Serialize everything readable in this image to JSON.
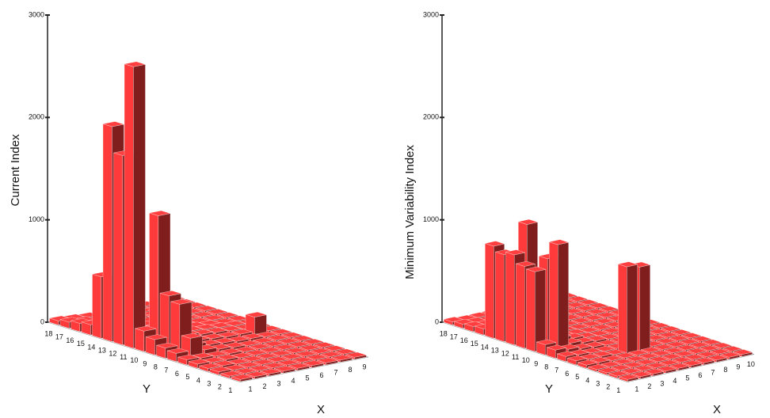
{
  "chart_data": [
    {
      "type": "bar3d",
      "zlabel": "Current Index",
      "ylabel": "Y",
      "xlabel": "X",
      "zlim": [
        0,
        3000
      ],
      "zticks": [
        0,
        1000,
        2000,
        3000
      ],
      "color": "#ff3a3a",
      "y_categories": [
        1,
        2,
        3,
        4,
        5,
        6,
        7,
        8,
        9,
        10,
        11,
        12,
        13,
        14,
        15,
        16,
        17,
        18
      ],
      "x_categories": [
        1,
        2,
        3,
        4,
        5,
        6,
        7,
        8,
        9
      ],
      "values": [
        [
          20,
          20,
          20,
          20,
          20,
          20,
          20,
          20,
          20
        ],
        [
          20,
          20,
          20,
          20,
          20,
          20,
          20,
          20,
          20
        ],
        [
          30,
          20,
          20,
          20,
          20,
          20,
          20,
          20,
          20
        ],
        [
          30,
          30,
          20,
          20,
          20,
          20,
          20,
          20,
          20
        ],
        [
          40,
          30,
          30,
          20,
          20,
          20,
          20,
          20,
          20
        ],
        [
          50,
          40,
          30,
          30,
          20,
          20,
          20,
          20,
          20
        ],
        [
          80,
          200,
          60,
          40,
          30,
          20,
          20,
          20,
          20
        ],
        [
          100,
          500,
          80,
          50,
          40,
          30,
          30,
          20,
          20
        ],
        [
          150,
          550,
          100,
          60,
          50,
          40,
          40,
          180,
          20
        ],
        [
          200,
          1300,
          120,
          80,
          60,
          50,
          40,
          30,
          20
        ],
        [
          2750,
          150,
          100,
          80,
          60,
          50,
          40,
          30,
          20
        ],
        [
          1850,
          100,
          80,
          60,
          50,
          40,
          30,
          20,
          20
        ],
        [
          2100,
          150,
          60,
          50,
          40,
          30,
          20,
          20,
          20
        ],
        [
          600,
          80,
          50,
          40,
          30,
          20,
          20,
          20,
          20
        ],
        [
          100,
          60,
          40,
          30,
          20,
          20,
          20,
          20,
          20
        ],
        [
          80,
          50,
          30,
          20,
          20,
          20,
          20,
          20,
          20
        ],
        [
          60,
          40,
          20,
          20,
          20,
          20,
          20,
          20,
          20
        ],
        [
          40,
          30,
          20,
          20,
          20,
          20,
          20,
          20,
          20
        ]
      ]
    },
    {
      "type": "bar3d",
      "zlabel": "Minimum Variability Index",
      "ylabel": "Y",
      "xlabel": "X",
      "zlim": [
        0,
        3000
      ],
      "zticks": [
        0,
        1000,
        2000,
        3000
      ],
      "color": "#ff3a3a",
      "y_categories": [
        1,
        2,
        3,
        4,
        5,
        6,
        7,
        8,
        9,
        10,
        11,
        12,
        13,
        14,
        15,
        16,
        17,
        18
      ],
      "x_categories": [
        1,
        2,
        3,
        4,
        5,
        6,
        7,
        8,
        9,
        10
      ],
      "values": [
        [
          20,
          20,
          20,
          20,
          20,
          20,
          20,
          20,
          20,
          20
        ],
        [
          20,
          20,
          20,
          20,
          20,
          20,
          20,
          20,
          20,
          20
        ],
        [
          20,
          20,
          20,
          20,
          20,
          20,
          20,
          20,
          20,
          20
        ],
        [
          20,
          20,
          20,
          20,
          20,
          20,
          20,
          20,
          20,
          20
        ],
        [
          30,
          30,
          20,
          20,
          20,
          20,
          20,
          20,
          20,
          20
        ],
        [
          40,
          30,
          30,
          20,
          850,
          820,
          20,
          20,
          20,
          20
        ],
        [
          50,
          40,
          30,
          20,
          20,
          20,
          20,
          20,
          20,
          20
        ],
        [
          80,
          60,
          40,
          30,
          20,
          20,
          20,
          20,
          20,
          20
        ],
        [
          100,
          1050,
          60,
          40,
          30,
          20,
          20,
          20,
          20,
          20
        ],
        [
          780,
          880,
          80,
          50,
          30,
          20,
          20,
          20,
          20,
          20
        ],
        [
          800,
          100,
          60,
          40,
          30,
          20,
          20,
          20,
          20,
          20
        ],
        [
          880,
          1150,
          80,
          50,
          30,
          20,
          20,
          20,
          20,
          20
        ],
        [
          850,
          80,
          60,
          40,
          20,
          20,
          20,
          20,
          20,
          20
        ],
        [
          900,
          60,
          40,
          30,
          20,
          20,
          20,
          20,
          20,
          20
        ],
        [
          60,
          50,
          30,
          20,
          20,
          20,
          20,
          20,
          20,
          20
        ],
        [
          50,
          40,
          20,
          20,
          20,
          20,
          20,
          20,
          20,
          20
        ],
        [
          40,
          30,
          20,
          20,
          20,
          20,
          20,
          20,
          20,
          20
        ],
        [
          30,
          20,
          20,
          20,
          20,
          20,
          20,
          20,
          20,
          20
        ]
      ]
    }
  ]
}
